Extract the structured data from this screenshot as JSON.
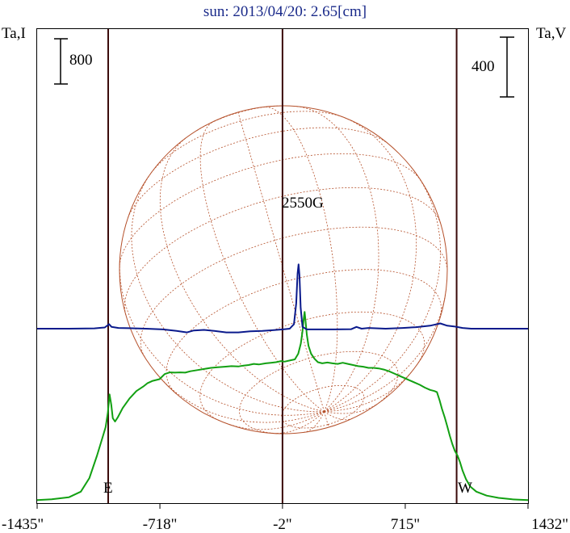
{
  "title": "sun: 2013/04/20: 2.65[cm]",
  "left_axis_label": "Ta,I",
  "right_axis_label": "Ta,V",
  "left_scale_label": "800",
  "right_scale_label": "400",
  "region_label": "2550G",
  "east_label": "E",
  "west_label": "W",
  "colors": {
    "intensity": "#12a012",
    "polarization": "#0a1a8c",
    "limb_line": "#3a0a0a",
    "grid": "#b5502a",
    "title": "#1a2a8a"
  },
  "chart_data": {
    "type": "line",
    "title": "sun: 2013/04/20: 2.65[cm]",
    "x_unit": "arcsec",
    "xlim": [
      -1435,
      1432
    ],
    "x_ticks": [
      {
        "value": -1435,
        "label": "-1435\""
      },
      {
        "value": -718,
        "label": "-718\""
      },
      {
        "value": -2,
        "label": "-2\""
      },
      {
        "value": 715,
        "label": "715\""
      },
      {
        "value": 1432,
        "label": "1432\""
      }
    ],
    "vertical_lines_x": [
      -1020,
      -2,
      1015
    ],
    "scale_bars": [
      {
        "axis": "Ta,I",
        "value": 800
      },
      {
        "axis": "Ta,V",
        "value": 400
      }
    ],
    "series": [
      {
        "name": "Ta,I",
        "axis": "left",
        "points": [
          [
            -1435,
            10
          ],
          [
            -1350,
            25
          ],
          [
            -1250,
            60
          ],
          [
            -1180,
            160
          ],
          [
            -1130,
            400
          ],
          [
            -1085,
            800
          ],
          [
            -1055,
            1100
          ],
          [
            -1035,
            1300
          ],
          [
            -1022,
            1560
          ],
          [
            -1012,
            1880
          ],
          [
            -1002,
            1700
          ],
          [
            -993,
            1460
          ],
          [
            -980,
            1400
          ],
          [
            -965,
            1470
          ],
          [
            -935,
            1640
          ],
          [
            -895,
            1810
          ],
          [
            -855,
            1940
          ],
          [
            -815,
            2020
          ],
          [
            -790,
            2080
          ],
          [
            -760,
            2120
          ],
          [
            -720,
            2150
          ],
          [
            -690,
            2240
          ],
          [
            -660,
            2270
          ],
          [
            -630,
            2265
          ],
          [
            -600,
            2270
          ],
          [
            -570,
            2265
          ],
          [
            -540,
            2290
          ],
          [
            -500,
            2310
          ],
          [
            -460,
            2330
          ],
          [
            -420,
            2350
          ],
          [
            -380,
            2360
          ],
          [
            -340,
            2370
          ],
          [
            -300,
            2380
          ],
          [
            -260,
            2375
          ],
          [
            -230,
            2390
          ],
          [
            -200,
            2400
          ],
          [
            -170,
            2420
          ],
          [
            -140,
            2410
          ],
          [
            -100,
            2430
          ],
          [
            -70,
            2440
          ],
          [
            -40,
            2450
          ],
          [
            -10,
            2470
          ],
          [
            10,
            2460
          ],
          [
            40,
            2480
          ],
          [
            70,
            2500
          ],
          [
            90,
            2600
          ],
          [
            105,
            2780
          ],
          [
            115,
            3000
          ],
          [
            122,
            3220
          ],
          [
            127,
            3340
          ],
          [
            132,
            3200
          ],
          [
            140,
            2940
          ],
          [
            150,
            2740
          ],
          [
            165,
            2600
          ],
          [
            185,
            2510
          ],
          [
            205,
            2450
          ],
          [
            230,
            2430
          ],
          [
            260,
            2445
          ],
          [
            290,
            2430
          ],
          [
            320,
            2420
          ],
          [
            350,
            2440
          ],
          [
            380,
            2420
          ],
          [
            410,
            2400
          ],
          [
            440,
            2380
          ],
          [
            470,
            2370
          ],
          [
            500,
            2350
          ],
          [
            530,
            2350
          ],
          [
            560,
            2340
          ],
          [
            590,
            2320
          ],
          [
            620,
            2290
          ],
          [
            650,
            2250
          ],
          [
            680,
            2210
          ],
          [
            710,
            2170
          ],
          [
            740,
            2130
          ],
          [
            770,
            2090
          ],
          [
            800,
            2050
          ],
          [
            830,
            2000
          ],
          [
            860,
            1960
          ],
          [
            885,
            1940
          ],
          [
            900,
            1920
          ],
          [
            915,
            1780
          ],
          [
            930,
            1620
          ],
          [
            945,
            1480
          ],
          [
            960,
            1320
          ],
          [
            975,
            1150
          ],
          [
            990,
            1000
          ],
          [
            1005,
            880
          ],
          [
            1020,
            800
          ],
          [
            1035,
            680
          ],
          [
            1050,
            530
          ],
          [
            1070,
            380
          ],
          [
            1095,
            250
          ],
          [
            1130,
            160
          ],
          [
            1190,
            90
          ],
          [
            1260,
            50
          ],
          [
            1340,
            25
          ],
          [
            1432,
            10
          ]
        ]
      },
      {
        "name": "Ta,V",
        "axis": "right",
        "points": [
          [
            -1435,
            0
          ],
          [
            -1250,
            0
          ],
          [
            -1100,
            2
          ],
          [
            -1040,
            8
          ],
          [
            -1015,
            30
          ],
          [
            -1000,
            12
          ],
          [
            -960,
            5
          ],
          [
            -900,
            3
          ],
          [
            -800,
            0
          ],
          [
            -700,
            -5
          ],
          [
            -620,
            -15
          ],
          [
            -560,
            -25
          ],
          [
            -520,
            -12
          ],
          [
            -460,
            -8
          ],
          [
            -400,
            -15
          ],
          [
            -330,
            -25
          ],
          [
            -260,
            -25
          ],
          [
            -190,
            -18
          ],
          [
            -120,
            -15
          ],
          [
            -60,
            -10
          ],
          [
            0,
            -5
          ],
          [
            40,
            0
          ],
          [
            65,
            30
          ],
          [
            78,
            170
          ],
          [
            86,
            370
          ],
          [
            92,
            430
          ],
          [
            97,
            360
          ],
          [
            104,
            140
          ],
          [
            115,
            12
          ],
          [
            140,
            -5
          ],
          [
            200,
            -5
          ],
          [
            300,
            -5
          ],
          [
            400,
            -3
          ],
          [
            430,
            12
          ],
          [
            460,
            0
          ],
          [
            500,
            5
          ],
          [
            600,
            0
          ],
          [
            700,
            5
          ],
          [
            780,
            10
          ],
          [
            860,
            20
          ],
          [
            920,
            35
          ],
          [
            960,
            20
          ],
          [
            1000,
            15
          ],
          [
            1050,
            5
          ],
          [
            1100,
            0
          ],
          [
            1432,
            0
          ]
        ]
      }
    ]
  }
}
